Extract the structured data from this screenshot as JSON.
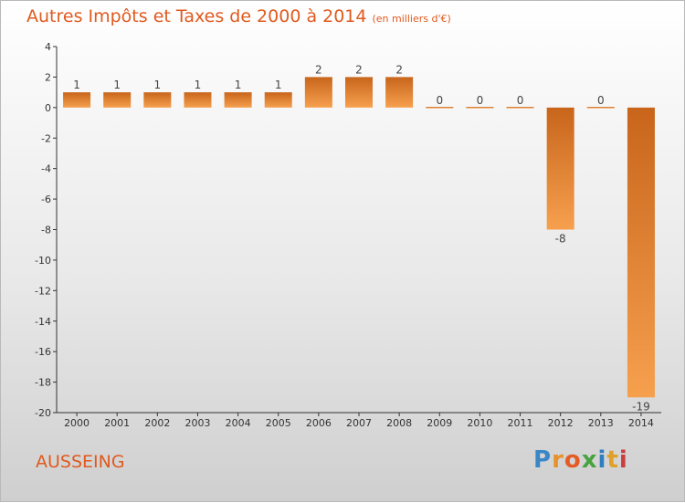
{
  "header": {
    "title": "Autres Impôts et Taxes de 2000 à 2014",
    "unit": "(en milliers d'€)"
  },
  "footer": {
    "city": "AUSSEING",
    "brand": "Proxiti"
  },
  "chart_data": {
    "type": "bar",
    "title": "Autres Impôts et Taxes de 2000 à 2014",
    "subtitle": "(en milliers d'€)",
    "categories": [
      "2000",
      "2001",
      "2002",
      "2003",
      "2004",
      "2005",
      "2006",
      "2007",
      "2008",
      "2009",
      "2010",
      "2011",
      "2012",
      "2013",
      "2014"
    ],
    "values": [
      1,
      1,
      1,
      1,
      1,
      1,
      2,
      2,
      2,
      0,
      0,
      0,
      -8,
      0,
      -19
    ],
    "ylim": [
      -20,
      4
    ],
    "yticks": [
      4,
      2,
      0,
      -2,
      -4,
      -6,
      -8,
      -10,
      -12,
      -14,
      -16,
      -18,
      -20
    ],
    "grid": false,
    "colors": {
      "bar_top": "#c8651b",
      "bar_bottom": "#f6a04e",
      "title": "#e05a1e"
    }
  }
}
